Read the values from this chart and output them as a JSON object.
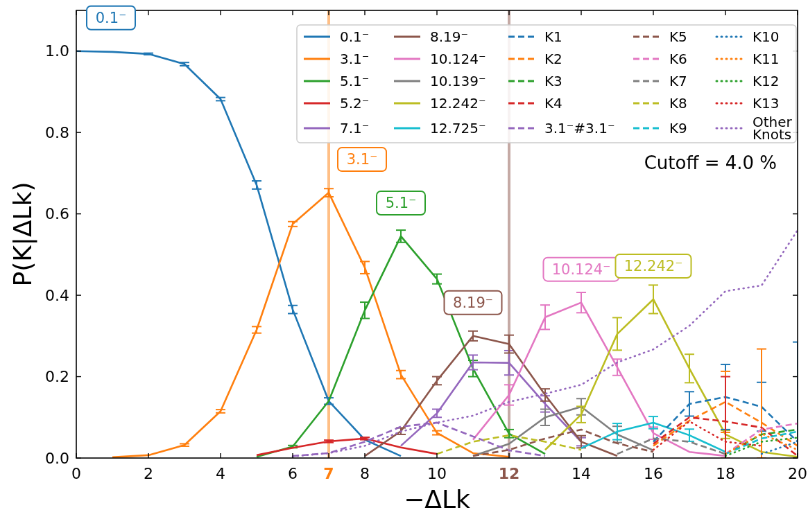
{
  "chart_data": {
    "type": "line",
    "xlabel": "−ΔLk",
    "ylabel": "P(K|ΔLk)",
    "x": [
      0,
      1,
      2,
      3,
      4,
      5,
      6,
      7,
      8,
      9,
      10,
      11,
      12,
      13,
      14,
      15,
      16,
      17,
      18,
      19,
      20
    ],
    "xlim": [
      0,
      20
    ],
    "ylim": [
      0,
      1.1
    ],
    "xticks": [
      0,
      2,
      4,
      6,
      8,
      10,
      14,
      16,
      18,
      20
    ],
    "yticks": [
      {
        "value": 0,
        "label": "0.0"
      },
      {
        "value": 0.2,
        "label": "0.2"
      },
      {
        "value": 0.4,
        "label": "0.4"
      },
      {
        "value": 0.6,
        "label": "0.6"
      },
      {
        "value": 0.8,
        "label": "0.8"
      },
      {
        "value": 1,
        "label": "1.0"
      }
    ],
    "grid": false,
    "legend": "top right",
    "marker": "none",
    "ref_lines": [
      {
        "axis": "x",
        "value": 7,
        "label": "7",
        "color": "#ff7f0e"
      },
      {
        "axis": "x",
        "value": 12,
        "label": "12",
        "color": "#8c564b"
      }
    ],
    "annotations": [
      {
        "text": "0.1⁻",
        "x": 0,
        "y": 1.0
      },
      {
        "text": "3.1⁻",
        "x": 7,
        "y": 0.652
      },
      {
        "text": "5.1⁻",
        "x": 9,
        "y": 0.545
      },
      {
        "text": "8.19⁻",
        "x": 11,
        "y": 0.3
      },
      {
        "text": "10.124⁻",
        "x": 14,
        "y": 0.382
      },
      {
        "text": "12.242⁻",
        "x": 16,
        "y": 0.39
      },
      "Cutoff = 4.0 %"
    ],
    "series": [
      {
        "name": "0.1⁻",
        "color": "#1f77b4",
        "line_style": "solid",
        "values": [
          1.0,
          0.998,
          0.993,
          0.968,
          0.882,
          0.671,
          0.365,
          0.14,
          0.045,
          0.005,
          null,
          null,
          null,
          null,
          null,
          null,
          null,
          null,
          null,
          null,
          null
        ],
        "errors": [
          null,
          null,
          0.002,
          0.004,
          0.004,
          0.01,
          0.01,
          0.008,
          null,
          null,
          null,
          null,
          null,
          null,
          null,
          null,
          null,
          null,
          null,
          null,
          null
        ]
      },
      {
        "name": "3.1⁻",
        "color": "#ff7f0e",
        "line_style": "solid",
        "values": [
          null,
          0.002,
          0.007,
          0.032,
          0.115,
          0.315,
          0.575,
          0.652,
          0.468,
          0.205,
          0.062,
          0.012,
          0.003,
          null,
          null,
          null,
          null,
          null,
          null,
          null,
          null
        ],
        "errors": [
          null,
          null,
          null,
          0.003,
          0.004,
          0.008,
          0.006,
          0.01,
          0.015,
          0.01,
          0.005,
          null,
          null,
          null,
          null,
          null,
          null,
          null,
          null,
          null,
          null
        ]
      },
      {
        "name": "5.1⁻",
        "color": "#2ca02c",
        "line_style": "solid",
        "values": [
          null,
          null,
          null,
          null,
          null,
          0.003,
          0.028,
          0.14,
          0.363,
          0.545,
          0.44,
          0.22,
          0.06,
          0.01,
          null,
          null,
          null,
          null,
          null,
          null,
          null
        ],
        "errors": [
          null,
          null,
          null,
          null,
          null,
          null,
          0.003,
          null,
          0.02,
          0.015,
          0.012,
          0.02,
          0.01,
          null,
          null,
          null,
          null,
          null,
          null,
          null,
          null
        ]
      },
      {
        "name": "5.2⁻",
        "color": "#d62728",
        "line_style": "solid",
        "values": [
          null,
          null,
          null,
          null,
          null,
          0.007,
          0.025,
          0.041,
          0.048,
          0.026,
          0.01,
          null,
          null,
          null,
          null,
          null,
          null,
          null,
          null,
          null,
          null
        ],
        "errors": [
          null,
          null,
          null,
          null,
          null,
          null,
          null,
          0.003,
          0.003,
          null,
          null,
          null,
          null,
          null,
          null,
          null,
          null,
          null,
          null,
          null,
          null
        ]
      },
      {
        "name": "7.1⁻",
        "color": "#9467bd",
        "line_style": "solid",
        "values": [
          null,
          null,
          null,
          null,
          null,
          null,
          null,
          null,
          null,
          0.03,
          0.11,
          0.235,
          0.234,
          0.133,
          0.04,
          null,
          null,
          null,
          null,
          null,
          null
        ],
        "errors": [
          null,
          null,
          null,
          null,
          null,
          null,
          null,
          null,
          null,
          null,
          0.01,
          0.018,
          0.03,
          0.02,
          0.01,
          null,
          null,
          null,
          null,
          null,
          null
        ]
      },
      {
        "name": "8.19⁻",
        "color": "#8c564b",
        "line_style": "solid",
        "values": [
          null,
          null,
          null,
          null,
          null,
          null,
          null,
          null,
          0.005,
          0.066,
          0.19,
          0.3,
          0.28,
          0.155,
          0.04,
          0.005,
          null,
          null,
          null,
          null,
          null
        ],
        "errors": [
          null,
          null,
          null,
          null,
          null,
          null,
          null,
          null,
          null,
          0.008,
          0.01,
          0.012,
          0.022,
          0.015,
          0.015,
          null,
          null,
          null,
          null,
          null,
          null
        ]
      },
      {
        "name": "10.124⁻",
        "color": "#e377c2",
        "line_style": "solid",
        "values": [
          null,
          null,
          null,
          null,
          null,
          null,
          null,
          null,
          null,
          null,
          null,
          0.045,
          0.155,
          0.346,
          0.382,
          0.223,
          0.061,
          0.015,
          0.005,
          null,
          null
        ],
        "errors": [
          null,
          null,
          null,
          null,
          null,
          null,
          null,
          null,
          null,
          null,
          null,
          null,
          0.025,
          0.03,
          0.025,
          0.02,
          0.015,
          null,
          null,
          null,
          null
        ]
      },
      {
        "name": "10.139⁻",
        "color": "#7f7f7f",
        "line_style": "solid",
        "values": [
          null,
          null,
          null,
          null,
          null,
          null,
          null,
          null,
          null,
          null,
          null,
          0.005,
          0.035,
          0.1,
          0.126,
          0.058,
          0.019,
          null,
          null,
          null,
          null
        ],
        "errors": [
          null,
          null,
          null,
          null,
          null,
          null,
          null,
          null,
          null,
          null,
          null,
          null,
          null,
          0.02,
          0.02,
          0.02,
          null,
          null,
          null,
          null,
          null
        ]
      },
      {
        "name": "12.242⁻",
        "color": "#bcbd22",
        "line_style": "solid",
        "values": [
          null,
          null,
          null,
          null,
          null,
          null,
          null,
          null,
          null,
          null,
          null,
          null,
          null,
          0.02,
          0.107,
          0.305,
          0.39,
          0.22,
          0.058,
          0.015,
          0.003
        ],
        "errors": [
          null,
          null,
          null,
          null,
          null,
          null,
          null,
          null,
          null,
          null,
          null,
          null,
          null,
          null,
          0.02,
          0.04,
          0.035,
          0.035,
          0.01,
          null,
          null
        ]
      },
      {
        "name": "12.725⁻",
        "color": "#17becf",
        "line_style": "solid",
        "values": [
          null,
          null,
          null,
          null,
          null,
          null,
          null,
          null,
          null,
          null,
          null,
          null,
          null,
          null,
          0.024,
          0.065,
          0.087,
          0.056,
          0.015,
          null,
          null
        ],
        "errors": [
          null,
          null,
          null,
          null,
          null,
          null,
          null,
          null,
          null,
          null,
          null,
          null,
          null,
          null,
          null,
          0.02,
          0.015,
          0.015,
          null,
          null,
          null
        ]
      },
      {
        "name": "K1",
        "color": "#1f77b4",
        "line_style": "dashed",
        "values": [
          0.04,
          0.133,
          0.15,
          0.126,
          0.04
        ],
        "x": [
          16,
          17,
          18,
          19,
          20
        ],
        "errors": [
          null,
          0.03,
          0.08,
          0.06,
          [
            0,
            0.285
          ]
        ]
      },
      {
        "name": "K2",
        "color": "#ff7f0e",
        "line_style": "dashed",
        "values": [
          0.03,
          0.092,
          0.138,
          0.087,
          0.03
        ],
        "x": [
          16,
          17,
          18,
          19,
          20
        ],
        "errors": [
          null,
          null,
          0.075,
          [
            0,
            0.268
          ],
          null
        ]
      },
      {
        "name": "K3",
        "color": "#2ca02c",
        "line_style": "dashed",
        "values": [
          0.01,
          0.058,
          0.07
        ],
        "x": [
          18,
          19,
          20
        ]
      },
      {
        "name": "K4",
        "color": "#d62728",
        "line_style": "dashed",
        "values": [
          0.035,
          0.1,
          0.09,
          0.075,
          0.005
        ],
        "x": [
          16,
          17,
          18,
          19,
          20
        ],
        "errors": [
          null,
          null,
          [
            0,
            0.2
          ],
          null,
          null
        ]
      },
      {
        "name": "3.1⁻#3.1⁻",
        "color": "#9467bd",
        "line_style": "dashed",
        "values": [
          0.005,
          0.012,
          0.04,
          0.077,
          0.087,
          0.053,
          0.019,
          0.005
        ],
        "x": [
          6,
          7,
          8,
          9,
          10,
          11,
          12,
          13
        ]
      },
      {
        "name": "K5",
        "color": "#8c564b",
        "line_style": "dashed",
        "values": [
          0.005,
          0.02,
          0.048,
          0.07,
          0.036,
          0.015
        ],
        "x": [
          11,
          12,
          13,
          14,
          15,
          16
        ]
      },
      {
        "name": "K6",
        "color": "#e377c2",
        "line_style": "dashed",
        "values": [
          0.01,
          0.07,
          0.085
        ],
        "x": [
          18,
          19,
          20
        ]
      },
      {
        "name": "K7",
        "color": "#7f7f7f",
        "line_style": "dashed",
        "values": [
          0.01,
          0.048,
          0.04,
          0.01
        ],
        "x": [
          15,
          16,
          17,
          18
        ]
      },
      {
        "name": "K8",
        "color": "#bcbd22",
        "line_style": "dashed",
        "values": [
          0.01,
          0.04,
          0.056,
          0.04,
          0.02
        ],
        "x": [
          10,
          11,
          12,
          13,
          14
        ]
      },
      {
        "name": "K9",
        "color": "#17becf",
        "line_style": "dashed",
        "values": [
          0.01,
          0.048,
          0.065
        ],
        "x": [
          18,
          19,
          20
        ]
      },
      {
        "name": "K10",
        "color": "#1f77b4",
        "line_style": "dotted",
        "values": [
          0.01,
          0.04
        ],
        "x": [
          19,
          20
        ]
      },
      {
        "name": "K11",
        "color": "#ff7f0e",
        "line_style": "dotted",
        "values": [
          0.01,
          0.06,
          0.02
        ],
        "x": [
          18,
          19,
          20
        ]
      },
      {
        "name": "K12",
        "color": "#2ca02c",
        "line_style": "dotted",
        "values": [
          0.005,
          0.04,
          0.05
        ],
        "x": [
          18,
          19,
          20
        ]
      },
      {
        "name": "K13",
        "color": "#d62728",
        "line_style": "dotted",
        "values": [
          0.02,
          0.09,
          0.04,
          0.03
        ],
        "x": [
          16,
          17,
          18,
          19
        ]
      },
      {
        "name": "Other Knots",
        "color": "#9467bd",
        "line_style": "dotted",
        "values": [
          0.004,
          0.012,
          0.03,
          0.065,
          0.087,
          0.104,
          0.138,
          0.158,
          0.18,
          0.235,
          0.267,
          0.325,
          0.41,
          0.424,
          0.56
        ],
        "x": [
          6,
          7,
          8,
          9,
          10,
          11,
          12,
          13,
          14,
          15,
          16,
          17,
          18,
          19,
          20
        ]
      }
    ]
  }
}
